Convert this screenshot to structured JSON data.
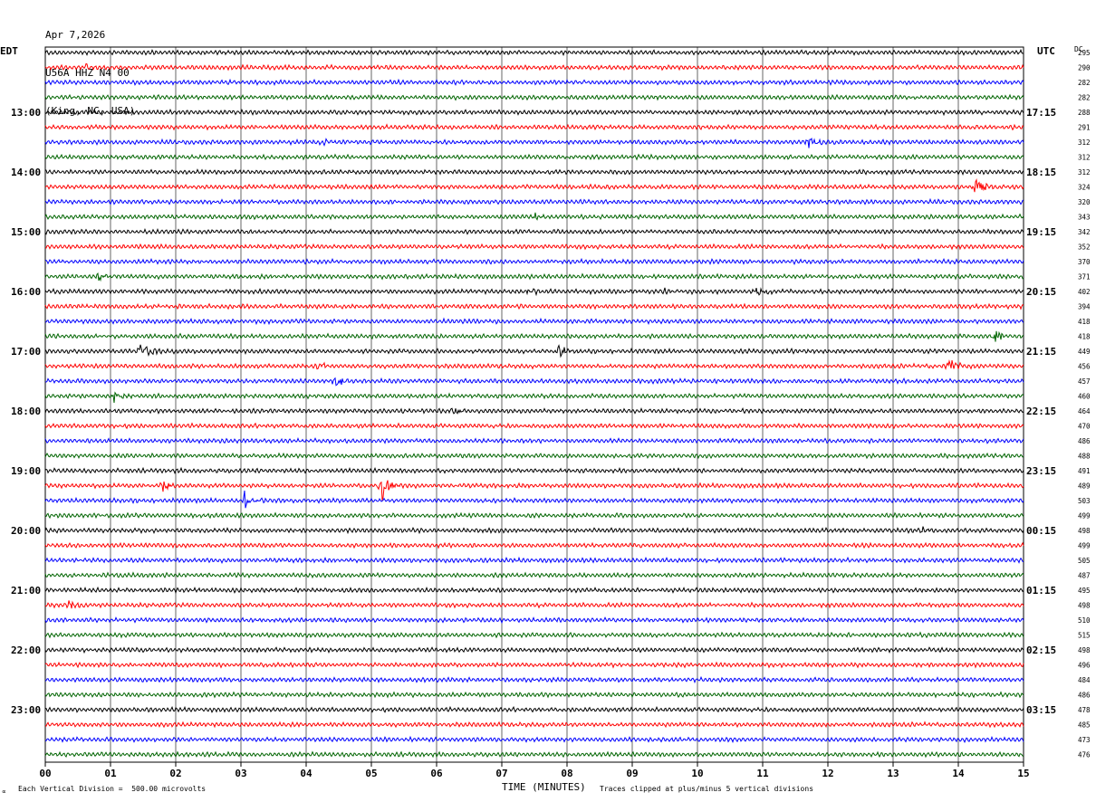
{
  "header": {
    "date": "Apr 7,2026",
    "station": "U56A HHZ N4 00",
    "location": "(King, NC, USA)"
  },
  "left_tz_label": "EDT",
  "right_tz_label": "UTC",
  "dc_header": "DC",
  "footer": {
    "scale_note": "Each Vertical Division =  500.00 microvolts",
    "clip_note": "Traces clipped at plus/minus 5 vertical divisions",
    "glyph": "∝"
  },
  "colors": {
    "trace_cycle": [
      "#000000",
      "#ff0000",
      "#0000ff",
      "#006400"
    ],
    "grid": "#000000"
  },
  "chart_data": {
    "type": "line",
    "xlabel": "TIME (MINUTES)",
    "xlim": [
      0,
      15
    ],
    "x_ticks": [
      "00",
      "01",
      "02",
      "03",
      "04",
      "05",
      "06",
      "07",
      "08",
      "09",
      "10",
      "11",
      "12",
      "13",
      "14",
      "15"
    ],
    "left_time_labels": [
      "13:00",
      "14:00",
      "15:00",
      "16:00",
      "17:00",
      "18:00",
      "19:00",
      "20:00",
      "21:00",
      "22:00",
      "23:00"
    ],
    "right_time_labels": [
      "17:15",
      "18:15",
      "19:15",
      "20:15",
      "21:15",
      "22:15",
      "23:15",
      "00:15",
      "01:15",
      "02:15",
      "03:15"
    ],
    "label_every_n_traces": 4,
    "first_labeled_trace": 4,
    "dc_offsets": [
      295,
      290,
      282,
      282,
      288,
      291,
      312,
      312,
      312,
      324,
      320,
      343,
      342,
      352,
      370,
      371,
      402,
      394,
      418,
      418,
      449,
      456,
      457,
      460,
      464,
      470,
      486,
      488,
      491,
      489,
      503,
      499,
      498,
      499,
      505,
      487,
      495,
      498,
      510,
      515,
      498,
      496,
      484,
      486,
      478,
      485,
      473,
      476
    ],
    "events": [
      {
        "trace": 1,
        "minute": 0.6,
        "amp": 0.4
      },
      {
        "trace": 6,
        "minute": 4.25,
        "amp": 0.5
      },
      {
        "trace": 6,
        "minute": 11.7,
        "amp": 1.0
      },
      {
        "trace": 9,
        "minute": 14.25,
        "amp": 1.4
      },
      {
        "trace": 11,
        "minute": 7.5,
        "amp": 0.35
      },
      {
        "trace": 15,
        "minute": 0.8,
        "amp": 0.7
      },
      {
        "trace": 16,
        "minute": 7.4,
        "amp": 0.5
      },
      {
        "trace": 16,
        "minute": 10.9,
        "amp": 0.6
      },
      {
        "trace": 16,
        "minute": 9.45,
        "amp": 0.4
      },
      {
        "trace": 19,
        "minute": 14.55,
        "amp": 1.2
      },
      {
        "trace": 20,
        "minute": 1.45,
        "amp": 1.3
      },
      {
        "trace": 20,
        "minute": 7.85,
        "amp": 1.0
      },
      {
        "trace": 21,
        "minute": 4.15,
        "amp": 0.5
      },
      {
        "trace": 21,
        "minute": 13.85,
        "amp": 0.8
      },
      {
        "trace": 22,
        "minute": 4.45,
        "amp": 0.8
      },
      {
        "trace": 23,
        "minute": 1.05,
        "amp": 0.8
      },
      {
        "trace": 24,
        "minute": 6.25,
        "amp": 0.6
      },
      {
        "trace": 24,
        "minute": 5.4,
        "amp": 0.35
      },
      {
        "trace": 29,
        "minute": 1.8,
        "amp": 0.7
      },
      {
        "trace": 29,
        "minute": 5.15,
        "amp": 2.0
      },
      {
        "trace": 30,
        "minute": 3.05,
        "amp": 1.3
      },
      {
        "trace": 32,
        "minute": 13.4,
        "amp": 0.45
      },
      {
        "trace": 37,
        "minute": 0.35,
        "amp": 0.5
      }
    ]
  }
}
